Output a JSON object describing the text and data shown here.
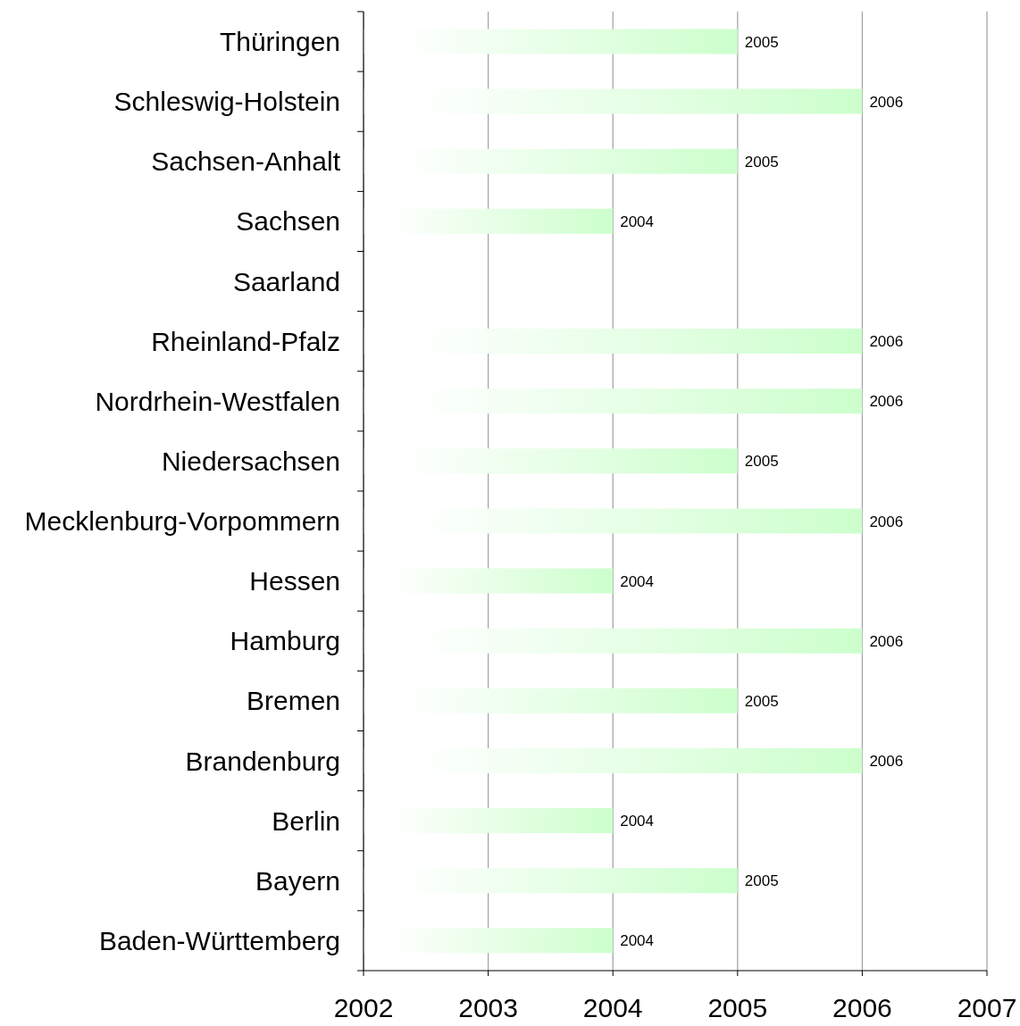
{
  "chart_data": {
    "type": "bar",
    "orientation": "horizontal",
    "categories": [
      "Thüringen",
      "Schleswig-Holstein",
      "Sachsen-Anhalt",
      "Sachsen",
      "Saarland",
      "Rheinland-Pfalz",
      "Nordrhein-Westfalen",
      "Niedersachsen",
      "Mecklenburg-Vorpommern",
      "Hessen",
      "Hamburg",
      "Bremen",
      "Brandenburg",
      "Berlin",
      "Bayern",
      "Baden-Württemberg"
    ],
    "values": [
      2005,
      2006,
      2005,
      2004,
      null,
      2006,
      2006,
      2005,
      2006,
      2004,
      2006,
      2005,
      2006,
      2004,
      2005,
      2004
    ],
    "color": "#ccffcc",
    "xlim": [
      2002,
      2007
    ],
    "xticks": [
      2002,
      2003,
      2004,
      2005,
      2006,
      2007
    ],
    "grid": "x",
    "data_labels": true
  }
}
